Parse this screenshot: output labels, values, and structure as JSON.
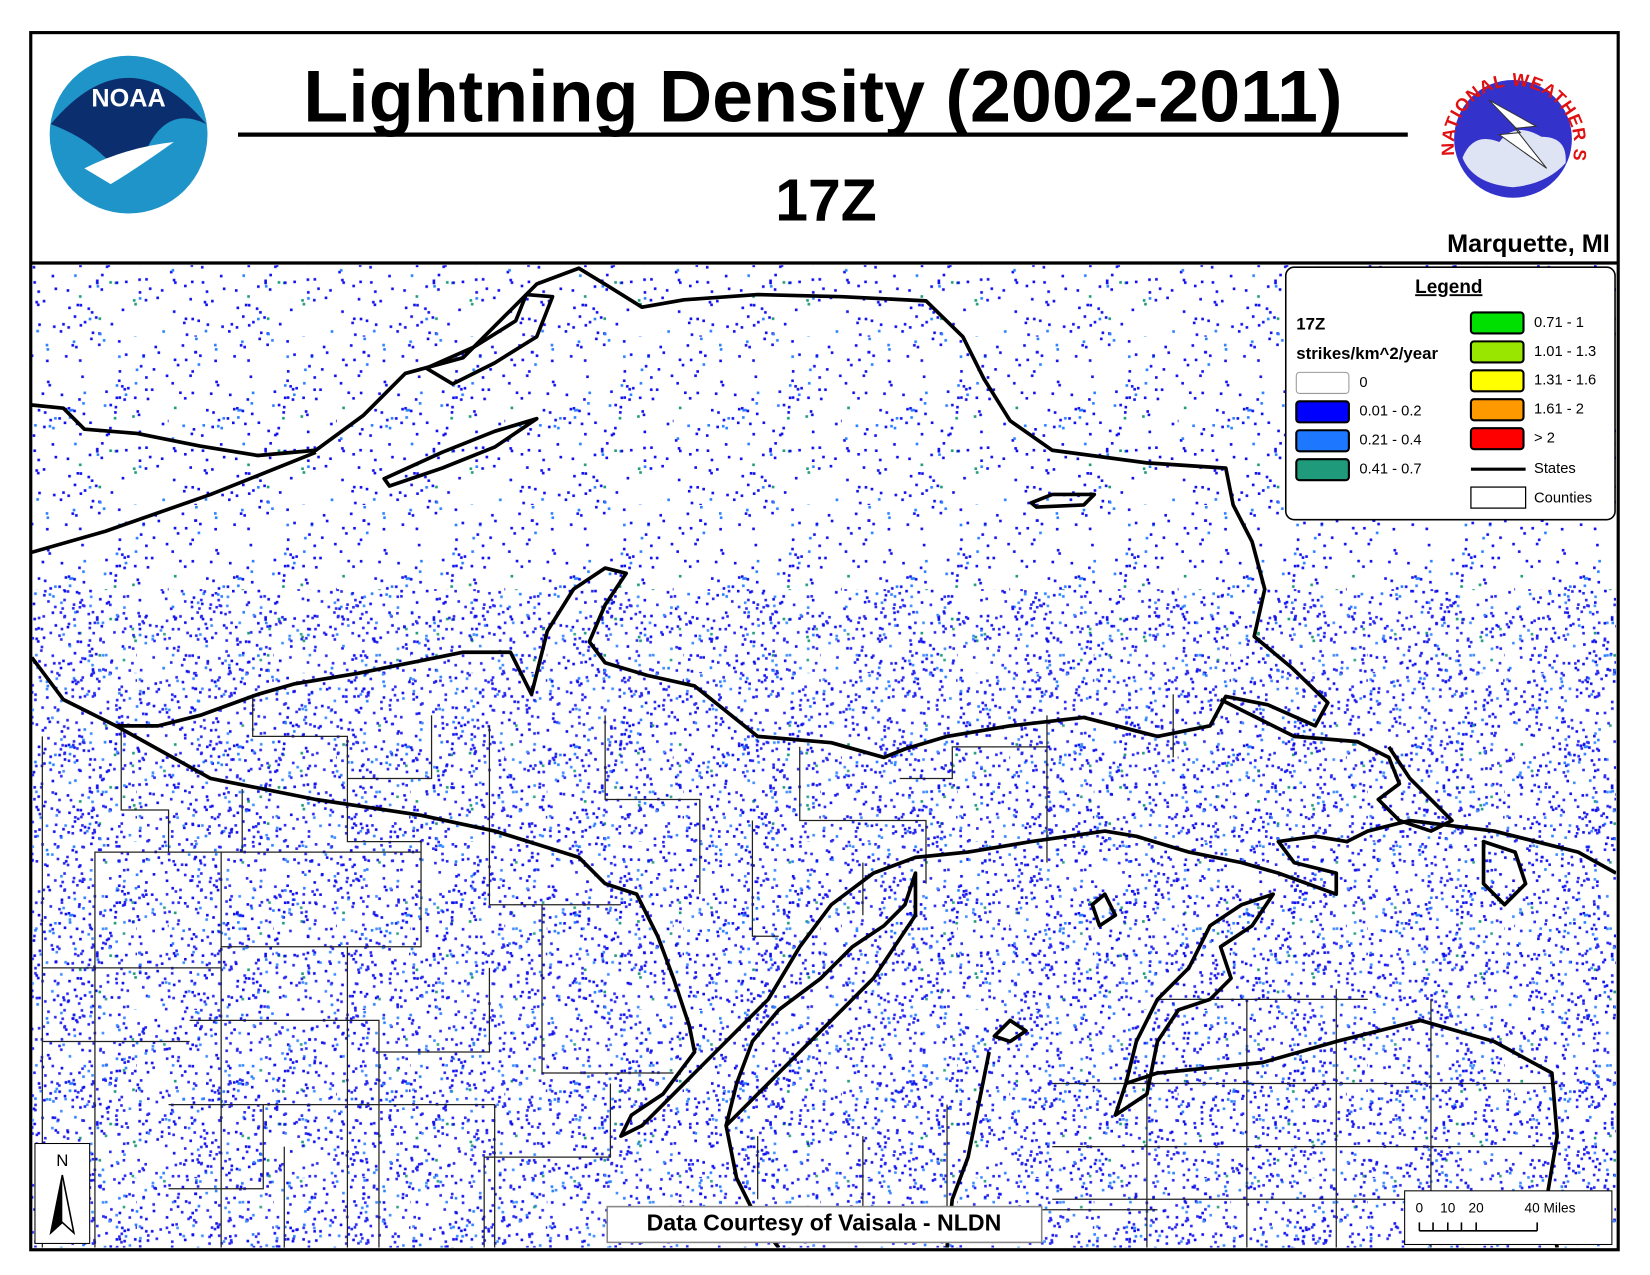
{
  "header": {
    "title": "Lightning Density (2002-2011)",
    "subtitle": "17Z",
    "location": "Marquette, MI",
    "left_logo": "NOAA",
    "right_logo": "NATIONAL WEATHER SERVICE"
  },
  "legend": {
    "title": "Legend",
    "hour": "17Z",
    "units": "strikes/km^2/year",
    "items": [
      {
        "label": "0",
        "color": "#ffffff"
      },
      {
        "label": "0.01 - 0.2",
        "color": "#0000ff"
      },
      {
        "label": "0.21 - 0.4",
        "color": "#1e78ff"
      },
      {
        "label": "0.41 - 0.7",
        "color": "#1f9a7a"
      },
      {
        "label": "0.71 - 1",
        "color": "#00e000"
      },
      {
        "label": "1.01 - 1.3",
        "color": "#99e600"
      },
      {
        "label": "1.31 - 1.6",
        "color": "#ffff00"
      },
      {
        "label": "1.61 - 2",
        "color": "#ff9900"
      },
      {
        "label": "> 2",
        "color": "#ff0000"
      }
    ],
    "lines": [
      {
        "label": "States"
      },
      {
        "label": "Counties"
      }
    ]
  },
  "credit": "Data Courtesy of Vaisala - NLDN",
  "north": "N",
  "scale_bar": {
    "labels": [
      "0",
      "10",
      "20",
      "40 Miles"
    ]
  }
}
